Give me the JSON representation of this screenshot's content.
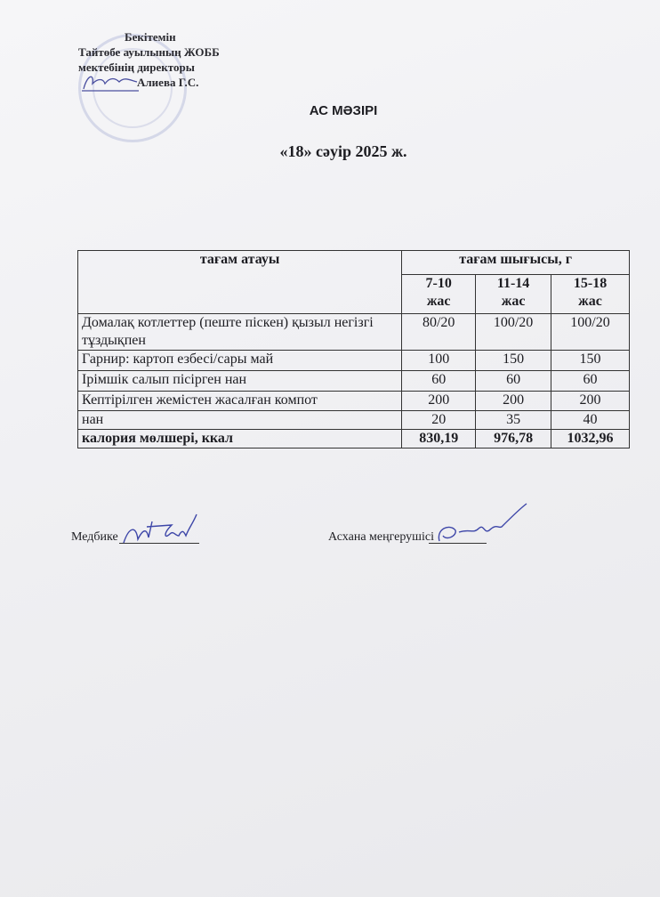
{
  "approval": {
    "line1": "Бекітемін",
    "line2": "Тайтөбе ауылының ЖОББ",
    "line3": "мектебінің директоры",
    "line4": "Алиева Г.С."
  },
  "title": "АС МӘЗІРІ",
  "date": "«18»  сәуір  2025 ж.",
  "table": {
    "header_name": "тағам атауы",
    "header_output": "тағам шығысы, г",
    "age_groups": [
      {
        "range": "7-10",
        "unit": "жас"
      },
      {
        "range": "11-14",
        "unit": "жас"
      },
      {
        "range": "15-18",
        "unit": "жас"
      }
    ],
    "rows": [
      {
        "name": "Домалақ  котлеттер (пеште піскен) қызыл негізгі  тұздықпен",
        "values": [
          "80/20",
          "100/20",
          "100/20"
        ]
      },
      {
        "name": "Гарнир: картоп езбесі/сары май",
        "values": [
          "100",
          "150",
          "150"
        ]
      },
      {
        "name": "Ірімшік салып пісірген нан",
        "values": [
          "60",
          "60",
          "60"
        ]
      },
      {
        "name": "Кептірілген жемістен жасалған компот",
        "values": [
          "200",
          "200",
          "200"
        ]
      },
      {
        "name": "нан",
        "values": [
          "20",
          "35",
          "40"
        ]
      }
    ],
    "total": {
      "name": "калория мөлшері, ккал",
      "values": [
        "830,19",
        "976,78",
        "1032,96"
      ]
    }
  },
  "signatures": {
    "nurse": "Медбике",
    "canteen_head": "Асхана меңгерушісі"
  }
}
